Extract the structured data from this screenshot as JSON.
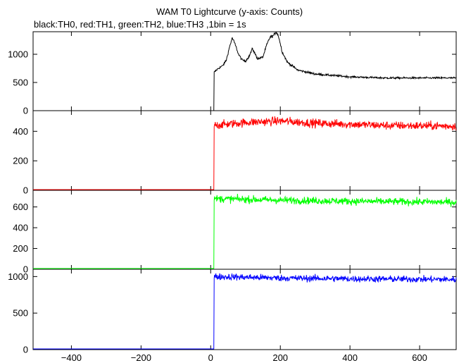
{
  "title": "WAM T0 Lightcurve (y-axis: Counts)",
  "subtitle": "black:TH0, red:TH1, green:TH2, blue:TH3 ,1bin = 1s",
  "chart_data": {
    "type": "line",
    "title": "WAM T0 Lightcurve (y-axis: Counts)",
    "xlabel": "",
    "ylabel": "Counts",
    "xlim": [
      -510,
      705
    ],
    "x_ticks": [
      -400,
      -200,
      0,
      200,
      400,
      600
    ],
    "grid": false,
    "legend": "black:TH0, red:TH1, green:TH2, blue:TH3 ,1bin = 1s",
    "panels": [
      {
        "name": "TH0",
        "color": "#000000",
        "ylim": [
          0,
          1400
        ],
        "y_ticks": [
          0,
          500,
          1000
        ],
        "baseline": 0,
        "onset_x": 10,
        "noise": 18,
        "profile": [
          [
            10,
            680
          ],
          [
            20,
            740
          ],
          [
            35,
            800
          ],
          [
            45,
            900
          ],
          [
            55,
            1150
          ],
          [
            62,
            1290
          ],
          [
            70,
            1180
          ],
          [
            80,
            1000
          ],
          [
            90,
            900
          ],
          [
            100,
            880
          ],
          [
            110,
            960
          ],
          [
            120,
            1100
          ],
          [
            128,
            1000
          ],
          [
            135,
            920
          ],
          [
            150,
            950
          ],
          [
            160,
            1150
          ],
          [
            170,
            1300
          ],
          [
            180,
            1330
          ],
          [
            188,
            1400
          ],
          [
            195,
            1320
          ],
          [
            205,
            1050
          ],
          [
            220,
            860
          ],
          [
            250,
            720
          ],
          [
            300,
            650
          ],
          [
            400,
            600
          ],
          [
            500,
            580
          ],
          [
            600,
            580
          ],
          [
            705,
            580
          ]
        ]
      },
      {
        "name": "TH1",
        "color": "#ff0000",
        "ylim": [
          0,
          540
        ],
        "y_ticks": [
          0,
          200,
          400
        ],
        "baseline": 5,
        "onset_x": 10,
        "noise": 28,
        "profile": [
          [
            10,
            440
          ],
          [
            100,
            460
          ],
          [
            200,
            470
          ],
          [
            300,
            455
          ],
          [
            400,
            448
          ],
          [
            500,
            440
          ],
          [
            705,
            435
          ]
        ]
      },
      {
        "name": "TH2",
        "color": "#00ff00",
        "ylim": [
          0,
          760
        ],
        "y_ticks": [
          0,
          200,
          400,
          600
        ],
        "baseline": 8,
        "onset_x": 10,
        "noise": 35,
        "profile": [
          [
            10,
            680
          ],
          [
            200,
            665
          ],
          [
            400,
            655
          ],
          [
            705,
            645
          ]
        ]
      },
      {
        "name": "TH3",
        "color": "#0000ff",
        "ylim": [
          0,
          1100
        ],
        "y_ticks": [
          0,
          500,
          1000
        ],
        "baseline": 10,
        "onset_x": 10,
        "noise": 45,
        "profile": [
          [
            10,
            1000
          ],
          [
            200,
            980
          ],
          [
            400,
            970
          ],
          [
            705,
            960
          ]
        ]
      }
    ]
  }
}
